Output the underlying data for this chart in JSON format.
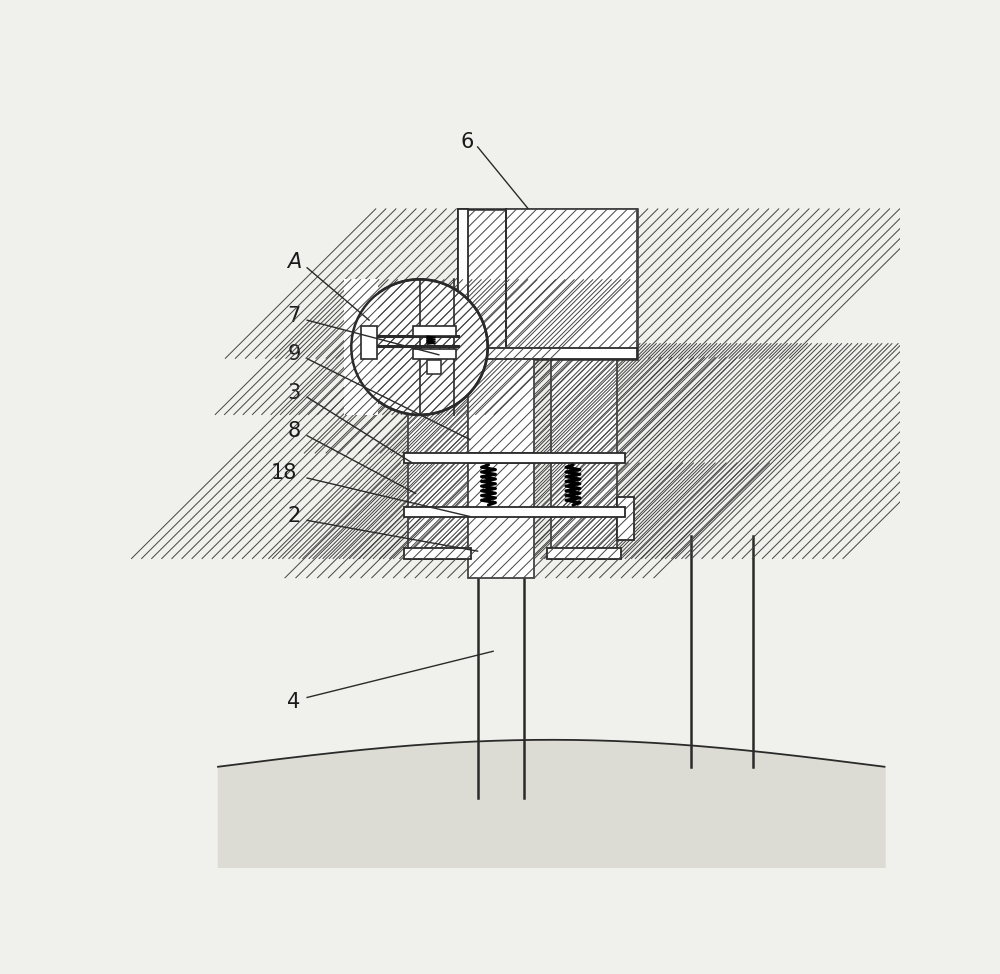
{
  "bg_color": "#f0f0ec",
  "line_color": "#2a2a2a",
  "hatch_line_color": "#444444",
  "label_color": "#1a1a1a",
  "figsize": [
    10.0,
    9.74
  ],
  "dpi": 100
}
